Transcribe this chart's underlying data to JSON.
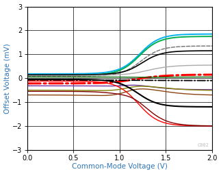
{
  "xlabel": "Common-Mode Voltage (V)",
  "ylabel": "Offset Voltage (mV)",
  "xlim": [
    0,
    2
  ],
  "ylim": [
    -3,
    3
  ],
  "xticks": [
    0,
    0.5,
    1.0,
    1.5,
    2.0
  ],
  "yticks": [
    -3,
    -2,
    -1,
    0,
    1,
    2,
    3
  ],
  "label_color": "#2E75B6",
  "watermark": "C002",
  "curves": [
    {
      "color": "#00B0F0",
      "lw": 1.4,
      "ls": "-",
      "y0": 0.18,
      "y1": -0.05,
      "y2": 1.85,
      "x_conv": 1.08,
      "x_div": 1.2,
      "k1": 12,
      "k2": 9
    },
    {
      "color": "#00B050",
      "lw": 1.4,
      "ls": "-",
      "y0": 0.12,
      "y1": -0.05,
      "y2": 1.75,
      "x_conv": 1.08,
      "x_div": 1.2,
      "k1": 12,
      "k2": 9
    },
    {
      "color": "#707070",
      "lw": 1.0,
      "ls": "--",
      "y0": 0.08,
      "y1": -0.02,
      "y2": 1.35,
      "x_conv": 1.08,
      "x_div": 1.22,
      "k1": 12,
      "k2": 9
    },
    {
      "color": "#000000",
      "lw": 1.2,
      "ls": "-",
      "y0": 0.14,
      "y1": -0.03,
      "y2": 1.15,
      "x_conv": 1.08,
      "x_div": 1.22,
      "k1": 12,
      "k2": 9
    },
    {
      "color": "#AAAAAA",
      "lw": 1.0,
      "ls": "-",
      "y0": 0.1,
      "y1": -0.02,
      "y2": 0.55,
      "x_conv": 1.08,
      "x_div": 1.25,
      "k1": 12,
      "k2": 7
    },
    {
      "color": "#FF0000",
      "lw": 2.2,
      "ls": "-.",
      "y0": -0.22,
      "y1": -0.1,
      "y2": 0.15,
      "x_conv": 1.1,
      "x_div": 1.25,
      "k1": 10,
      "k2": 6
    },
    {
      "color": "#000000",
      "lw": 1.3,
      "ls": "-.",
      "y0": -0.08,
      "y1": -0.08,
      "y2": -0.1,
      "x_conv": 1.08,
      "x_div": 1.3,
      "k1": 10,
      "k2": 5
    },
    {
      "color": "#006400",
      "lw": 1.0,
      "ls": "-",
      "y0": 0.05,
      "y1": 0.02,
      "y2": 0.05,
      "x_conv": 1.08,
      "x_div": 1.3,
      "k1": 10,
      "k2": 5
    },
    {
      "color": "#7030A0",
      "lw": 1.0,
      "ls": "-",
      "y0": -0.32,
      "y1": -0.1,
      "y2": -0.48,
      "x_conv": 1.08,
      "x_div": 1.25,
      "k1": 12,
      "k2": 7
    },
    {
      "color": "#808000",
      "lw": 1.0,
      "ls": "-",
      "y0": -0.5,
      "y1": -0.12,
      "y2": -0.52,
      "x_conv": 1.08,
      "x_div": 1.3,
      "k1": 12,
      "k2": 5
    },
    {
      "color": "#8B4513",
      "lw": 1.0,
      "ls": "-",
      "y0": -0.7,
      "y1": -0.12,
      "y2": -0.72,
      "x_conv": 1.08,
      "x_div": 1.3,
      "k1": 12,
      "k2": 5
    },
    {
      "color": "#000000",
      "lw": 1.5,
      "ls": "-",
      "y0": -0.05,
      "y1": -0.08,
      "y2": -1.2,
      "x_conv": 1.08,
      "x_div": 1.2,
      "k1": 12,
      "k2": 9
    },
    {
      "color": "#FF0000",
      "lw": 1.0,
      "ls": "-",
      "y0": -0.12,
      "y1": -0.1,
      "y2": -2.0,
      "x_conv": 1.1,
      "x_div": 1.2,
      "k1": 12,
      "k2": 9
    },
    {
      "color": "#800000",
      "lw": 1.0,
      "ls": "-",
      "y0": -0.55,
      "y1": -0.12,
      "y2": -2.0,
      "x_conv": 1.1,
      "x_div": 1.25,
      "k1": 12,
      "k2": 8
    }
  ]
}
